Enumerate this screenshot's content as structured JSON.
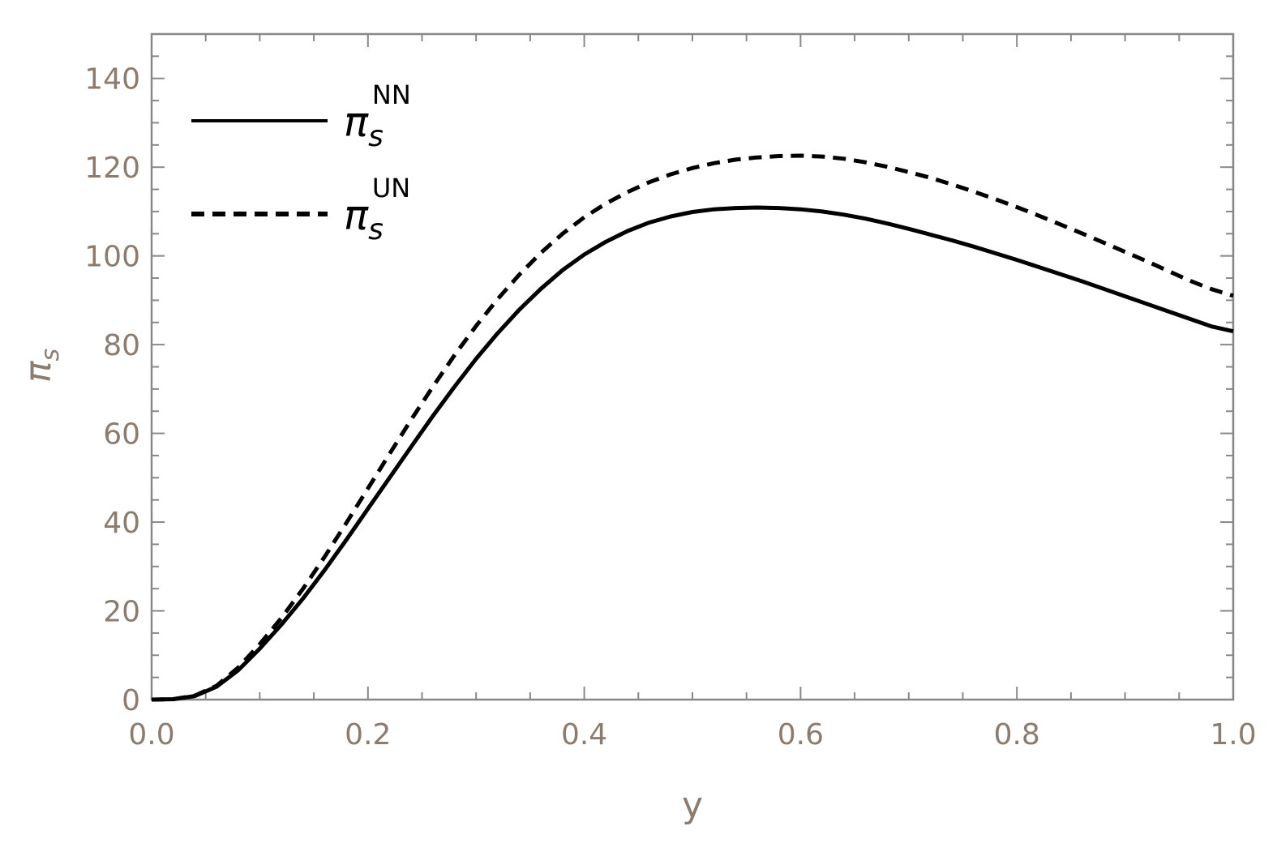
{
  "chart_data": {
    "type": "line",
    "title": "",
    "xlabel": "y",
    "ylabel": "π",
    "ylabel_sub": "s",
    "xlim": [
      0.0,
      1.0
    ],
    "ylim": [
      0,
      150
    ],
    "x_ticks": [
      0.0,
      0.2,
      0.4,
      0.6,
      0.8,
      1.0
    ],
    "x_tick_labels": [
      "0.0",
      "0.2",
      "0.4",
      "0.6",
      "0.8",
      "1.0"
    ],
    "y_ticks": [
      0,
      20,
      40,
      60,
      80,
      100,
      120,
      140
    ],
    "y_tick_labels": [
      "0",
      "20",
      "40",
      "60",
      "80",
      "100",
      "120",
      "140"
    ],
    "grid": false,
    "legend_position": "top-left",
    "series": [
      {
        "name": "π_s^NN",
        "legend_base": "π",
        "legend_sub": "s",
        "legend_sup": "NN",
        "style": "solid",
        "color": "#000000",
        "x": [
          0.0,
          0.02,
          0.04,
          0.06,
          0.08,
          0.1,
          0.12,
          0.14,
          0.16,
          0.18,
          0.2,
          0.22,
          0.24,
          0.26,
          0.28,
          0.3,
          0.32,
          0.34,
          0.36,
          0.38,
          0.4,
          0.42,
          0.44,
          0.46,
          0.48,
          0.5,
          0.52,
          0.54,
          0.56,
          0.58,
          0.6,
          0.62,
          0.64,
          0.66,
          0.68,
          0.7,
          0.72,
          0.74,
          0.76,
          0.78,
          0.8,
          0.82,
          0.84,
          0.86,
          0.88,
          0.9,
          0.92,
          0.94,
          0.96,
          0.98,
          1.0
        ],
        "y": [
          0,
          0.1,
          0.8,
          2.9,
          6.6,
          11.5,
          16.9,
          22.8,
          29.2,
          36.0,
          43.0,
          50.0,
          57.0,
          63.9,
          70.5,
          76.8,
          82.6,
          87.9,
          92.6,
          96.8,
          100.3,
          103.2,
          105.6,
          107.5,
          108.9,
          109.9,
          110.5,
          110.8,
          110.9,
          110.8,
          110.5,
          110.0,
          109.3,
          108.4,
          107.3,
          106.1,
          104.8,
          103.5,
          102.1,
          100.6,
          99.1,
          97.5,
          95.9,
          94.3,
          92.6,
          90.9,
          89.2,
          87.5,
          85.8,
          84.1,
          83.0
        ]
      },
      {
        "name": "π_s^UN",
        "legend_base": "π",
        "legend_sub": "s",
        "legend_sup": "UN",
        "style": "dashed",
        "color": "#000000",
        "x": [
          0.0,
          0.02,
          0.04,
          0.06,
          0.08,
          0.1,
          0.12,
          0.14,
          0.16,
          0.18,
          0.2,
          0.22,
          0.24,
          0.26,
          0.28,
          0.3,
          0.32,
          0.34,
          0.36,
          0.38,
          0.4,
          0.42,
          0.44,
          0.46,
          0.48,
          0.5,
          0.52,
          0.54,
          0.56,
          0.58,
          0.6,
          0.62,
          0.64,
          0.66,
          0.68,
          0.7,
          0.72,
          0.74,
          0.76,
          0.78,
          0.8,
          0.82,
          0.84,
          0.86,
          0.88,
          0.9,
          0.92,
          0.94,
          0.96,
          0.98,
          1.0
        ],
        "y": [
          0,
          0.1,
          0.9,
          3.1,
          7.2,
          12.5,
          18.4,
          25.0,
          32.2,
          39.8,
          47.6,
          55.4,
          63.1,
          70.5,
          77.6,
          84.2,
          90.3,
          95.8,
          100.7,
          105.0,
          108.7,
          111.8,
          114.4,
          116.6,
          118.4,
          119.8,
          120.9,
          121.7,
          122.2,
          122.5,
          122.6,
          122.4,
          121.9,
          121.1,
          120.1,
          118.9,
          117.6,
          116.1,
          114.5,
          112.8,
          111.0,
          109.1,
          107.1,
          105.1,
          103.0,
          100.9,
          98.8,
          96.6,
          94.4,
          92.5,
          91.0
        ]
      }
    ]
  },
  "colors": {
    "tick_label": "#8c7b6f",
    "axis_label": "#8c7b6f",
    "frame": "#888888",
    "series": "#000000"
  }
}
